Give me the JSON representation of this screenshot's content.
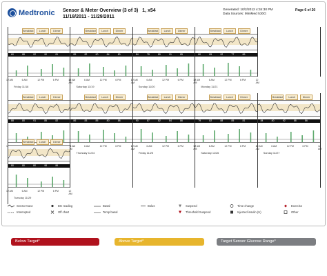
{
  "header": {
    "logo": "Medtronic",
    "title": "Sensor & Meter Overview (3 of 3)",
    "patient_id": "1, x54",
    "date_range": "11/18/2011 - 11/29/2011",
    "generated": "Generated: 10/2/2012 4:34:30 PM",
    "data_sources": "Data Sources: MiniMed 530G",
    "page": "Page 6 of 20"
  },
  "meals": [
    "Breakfast",
    "Lunch",
    "Dinner"
  ],
  "row_labels": {
    "glucose": "Glucose (mg/dL)",
    "carbs": "Carbs",
    "insulin": "Insulin (U)"
  },
  "time_ticks": [
    "12 AM",
    "6 AM",
    "12 PM",
    "6 PM",
    "12 AM"
  ],
  "rows": [
    {
      "days": [
        {
          "label": "Friday 11/18",
          "bg": [
            "60",
            "88",
            "92",
            "90",
            "81"
          ]
        },
        {
          "label": "Saturday 11/19",
          "bg": [
            "85",
            "82",
            "90",
            "84",
            "80"
          ]
        },
        {
          "label": "Sunday 11/20",
          "bg": [
            "84",
            "78",
            "80",
            "91",
            "85"
          ]
        },
        {
          "label": "Monday 11/21",
          "bg": [
            "80",
            "85",
            "92",
            "77",
            "86"
          ]
        }
      ]
    },
    {
      "days": [
        {
          "label": "Wednesday 11/23",
          "bg": [
            "88",
            "80",
            "91",
            "85",
            "82"
          ]
        },
        {
          "label": "Thursday 11/24",
          "bg": [
            "86",
            "83",
            "85",
            "80",
            "88"
          ]
        },
        {
          "label": "Friday 11/25",
          "bg": [
            "90",
            "87",
            "82",
            "84",
            "86"
          ]
        },
        {
          "label": "Saturday 11/26",
          "bg": [
            "79",
            "82",
            "88",
            "85",
            "81"
          ]
        },
        {
          "label": "Sunday 11/27",
          "bg": [
            "84",
            "80",
            "92",
            "88",
            "86"
          ]
        }
      ]
    },
    {
      "days": [
        {
          "label": "Tuesday 11/29",
          "bg": [
            "80",
            "80",
            "80",
            "98",
            "86"
          ]
        }
      ]
    }
  ],
  "legend": {
    "sensor_trace": "Sensor trace",
    "interrupted": "Interrupted",
    "bg_reading": "BG reading",
    "off_chart": "Off chart",
    "basal": "Basal",
    "temp_basal": "Temp basal",
    "bolus": "Bolus",
    "suspend": "Suspend",
    "threshold_suspend": "Threshold Suspend",
    "time_change": "Time change",
    "injected_insulin": "Injected insulin (U)",
    "exercise": "Exercise",
    "other": "Other"
  },
  "buttons": {
    "below": "Below Target*",
    "above": "Above Target*",
    "target": "Target Sensor Glucose Range*"
  },
  "colors": {
    "below": "#b0121d",
    "above": "#e7b52d",
    "target": "#7c7e82",
    "trace": "#333333",
    "meal_fill": "#f8edd2"
  }
}
